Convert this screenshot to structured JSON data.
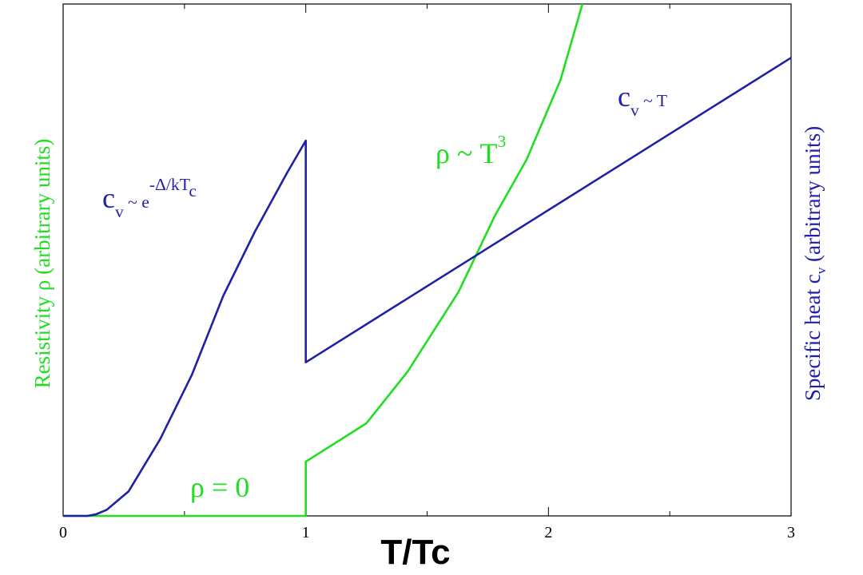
{
  "chart_data": {
    "type": "line",
    "xlabel": "T/Tc",
    "ylabel": "Resistivity ρ (arbitrary units)",
    "y2label": [
      "Specific heat c",
      "v",
      " (arbitrary units)"
    ],
    "xlim": [
      0,
      3
    ],
    "xticks": [
      0,
      1,
      2,
      3
    ],
    "xminor": [
      0.5,
      1.5,
      2.5
    ],
    "ylim": [
      0,
      100
    ],
    "y2lim": [
      0,
      100
    ],
    "series": [
      {
        "color": "#22dd22",
        "x": [
          0,
          1,
          1,
          1.12,
          1.25,
          1.42,
          1.63,
          1.78,
          1.91,
          2.05,
          2.14
        ],
        "values": [
          0,
          0,
          10.6,
          14.2,
          18.1,
          28.2,
          43.8,
          58.7,
          69.6,
          85.2,
          100
        ]
      },
      {
        "color": "#1f1fa8",
        "axis": "y2",
        "x": [
          0,
          0.1,
          0.135,
          0.18,
          0.27,
          0.4,
          0.53,
          0.66,
          0.79,
          0.925,
          1,
          1,
          3
        ],
        "values": [
          0,
          0,
          0.3,
          1.2,
          4.8,
          15,
          27.5,
          43,
          55.5,
          67.2,
          73.3,
          30,
          89.5
        ]
      }
    ],
    "annotations": [
      {
        "color": "#1f1fa8",
        "parts": [
          "c",
          "v",
          " ~ e",
          "-Δ/kT",
          "c"
        ]
      },
      {
        "color": "#22dd22",
        "parts": [
          "ρ ~ T",
          "3"
        ]
      },
      {
        "color": "#1f1fa8",
        "parts": [
          "c",
          "v",
          " ~ T"
        ]
      },
      {
        "color": "#22dd22",
        "parts": [
          "ρ = 0"
        ]
      }
    ]
  }
}
